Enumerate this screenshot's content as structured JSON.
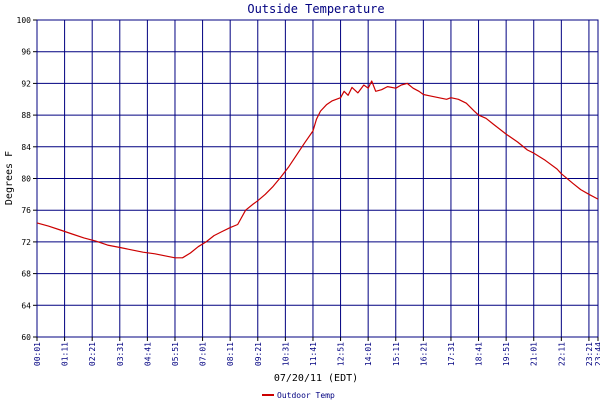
{
  "chart_data": {
    "type": "line",
    "title": "Outside Temperature",
    "xlabel": "07/20/11 (EDT)",
    "ylabel": "Degrees F",
    "ylim": [
      60,
      100
    ],
    "yticks": [
      60,
      64,
      68,
      72,
      76,
      80,
      84,
      88,
      92,
      96,
      100
    ],
    "xlim": [
      "00:01",
      "23:44"
    ],
    "xticks": [
      "00:01",
      "01:11",
      "02:21",
      "03:31",
      "04:41",
      "05:51",
      "07:01",
      "08:11",
      "09:21",
      "10:31",
      "11:41",
      "12:51",
      "14:01",
      "15:11",
      "16:21",
      "17:31",
      "18:41",
      "19:51",
      "21:01",
      "22:11",
      "23:21",
      "23:44"
    ],
    "grid": true,
    "legend_position": "bottom-left",
    "colors": {
      "series": "#cc0000",
      "grid": "#000080",
      "axis": "#000000",
      "text": "#000080"
    },
    "series": [
      {
        "name": "Outdoor Temp",
        "points": [
          [
            "00:01",
            74.4
          ],
          [
            "00:30",
            74.0
          ],
          [
            "01:00",
            73.5
          ],
          [
            "01:30",
            73.0
          ],
          [
            "02:00",
            72.5
          ],
          [
            "02:30",
            72.1
          ],
          [
            "03:00",
            71.6
          ],
          [
            "03:30",
            71.3
          ],
          [
            "04:00",
            71.0
          ],
          [
            "04:30",
            70.7
          ],
          [
            "05:00",
            70.5
          ],
          [
            "05:30",
            70.2
          ],
          [
            "05:51",
            70.0
          ],
          [
            "06:10",
            70.0
          ],
          [
            "06:30",
            70.6
          ],
          [
            "06:50",
            71.4
          ],
          [
            "07:10",
            72.0
          ],
          [
            "07:30",
            72.8
          ],
          [
            "07:50",
            73.3
          ],
          [
            "08:11",
            73.8
          ],
          [
            "08:30",
            74.2
          ],
          [
            "08:50",
            76.0
          ],
          [
            "09:10",
            76.8
          ],
          [
            "09:21",
            77.2
          ],
          [
            "09:40",
            78.0
          ],
          [
            "10:00",
            79.0
          ],
          [
            "10:20",
            80.2
          ],
          [
            "10:40",
            81.5
          ],
          [
            "11:00",
            83.0
          ],
          [
            "11:20",
            84.5
          ],
          [
            "11:41",
            86.0
          ],
          [
            "11:50",
            87.5
          ],
          [
            "12:00",
            88.5
          ],
          [
            "12:15",
            89.3
          ],
          [
            "12:30",
            89.8
          ],
          [
            "12:51",
            90.2
          ],
          [
            "13:00",
            91.0
          ],
          [
            "13:10",
            90.5
          ],
          [
            "13:20",
            91.5
          ],
          [
            "13:35",
            90.8
          ],
          [
            "13:50",
            91.8
          ],
          [
            "14:01",
            91.4
          ],
          [
            "14:10",
            92.3
          ],
          [
            "14:20",
            91.0
          ],
          [
            "14:35",
            91.2
          ],
          [
            "14:50",
            91.6
          ],
          [
            "15:11",
            91.4
          ],
          [
            "15:25",
            91.8
          ],
          [
            "15:40",
            92.0
          ],
          [
            "15:55",
            91.4
          ],
          [
            "16:10",
            91.0
          ],
          [
            "16:21",
            90.6
          ],
          [
            "16:40",
            90.4
          ],
          [
            "17:00",
            90.2
          ],
          [
            "17:20",
            90.0
          ],
          [
            "17:31",
            90.2
          ],
          [
            "17:50",
            90.0
          ],
          [
            "18:10",
            89.5
          ],
          [
            "18:30",
            88.5
          ],
          [
            "18:41",
            88.0
          ],
          [
            "19:00",
            87.6
          ],
          [
            "19:20",
            86.8
          ],
          [
            "19:51",
            85.6
          ],
          [
            "20:20",
            84.6
          ],
          [
            "20:45",
            83.6
          ],
          [
            "21:01",
            83.2
          ],
          [
            "21:30",
            82.3
          ],
          [
            "22:00",
            81.2
          ],
          [
            "22:11",
            80.6
          ],
          [
            "22:40",
            79.4
          ],
          [
            "23:00",
            78.6
          ],
          [
            "23:21",
            78.0
          ],
          [
            "23:44",
            77.4
          ]
        ]
      }
    ]
  }
}
